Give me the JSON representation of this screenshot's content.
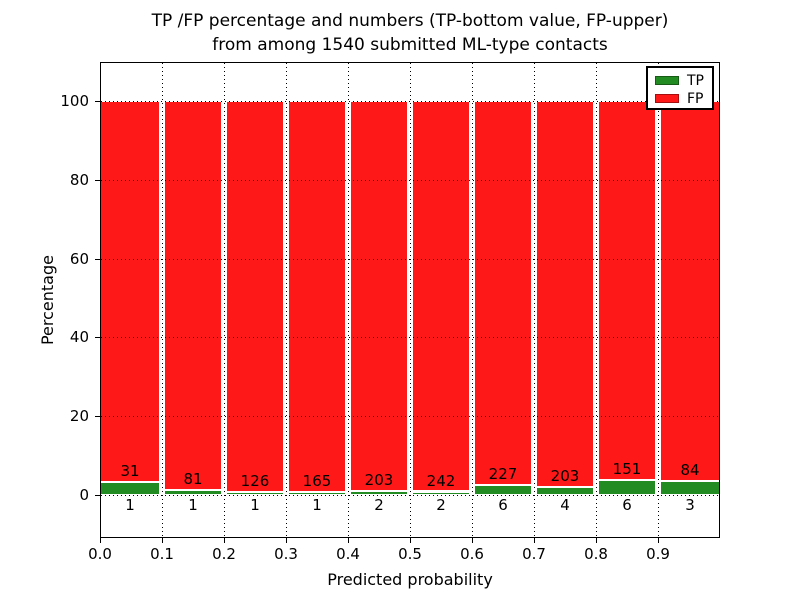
{
  "chart_data": {
    "type": "bar",
    "stacked": true,
    "normalized_to": 100,
    "title_line1": "TP /FP percentage and numbers (TP-bottom value, FP-upper)",
    "title_line2": "from among 1540 submitted ML-type contacts",
    "total_submitted_contacts": 1540,
    "xlabel": "Predicted probability",
    "ylabel": "Percentage",
    "bin_width": 0.1,
    "bin_starts": [
      0.0,
      0.1,
      0.2,
      0.3,
      0.4,
      0.5,
      0.6,
      0.7,
      0.8,
      0.9
    ],
    "x_ticks": [
      0.0,
      0.1,
      0.2,
      0.3,
      0.4,
      0.5,
      0.6,
      0.7,
      0.8,
      0.9
    ],
    "x_tick_labels": [
      "0.0",
      "0.1",
      "0.2",
      "0.3",
      "0.4",
      "0.5",
      "0.6",
      "0.7",
      "0.8",
      "0.9"
    ],
    "y_ticks": [
      0,
      20,
      40,
      60,
      80,
      100
    ],
    "y_tick_labels": [
      "0",
      "20",
      "40",
      "60",
      "80",
      "100"
    ],
    "xlim": [
      0.0,
      1.0
    ],
    "ylim": [
      -11,
      110
    ],
    "grid": "dotted",
    "legend_position": "upper-right",
    "series": [
      {
        "name": "TP",
        "color": "#228b22",
        "counts": [
          1,
          1,
          1,
          1,
          2,
          2,
          6,
          4,
          6,
          3
        ]
      },
      {
        "name": "FP",
        "color": "#ff1818",
        "counts": [
          31,
          81,
          126,
          165,
          203,
          242,
          227,
          203,
          151,
          84
        ]
      }
    ],
    "bar_label_note": "FP count printed above each green bar, TP count printed below the 0 line"
  },
  "colors": {
    "bar_edge": "#ffffff",
    "axis": "#000000",
    "background": "#ffffff",
    "grid": "#000000"
  }
}
